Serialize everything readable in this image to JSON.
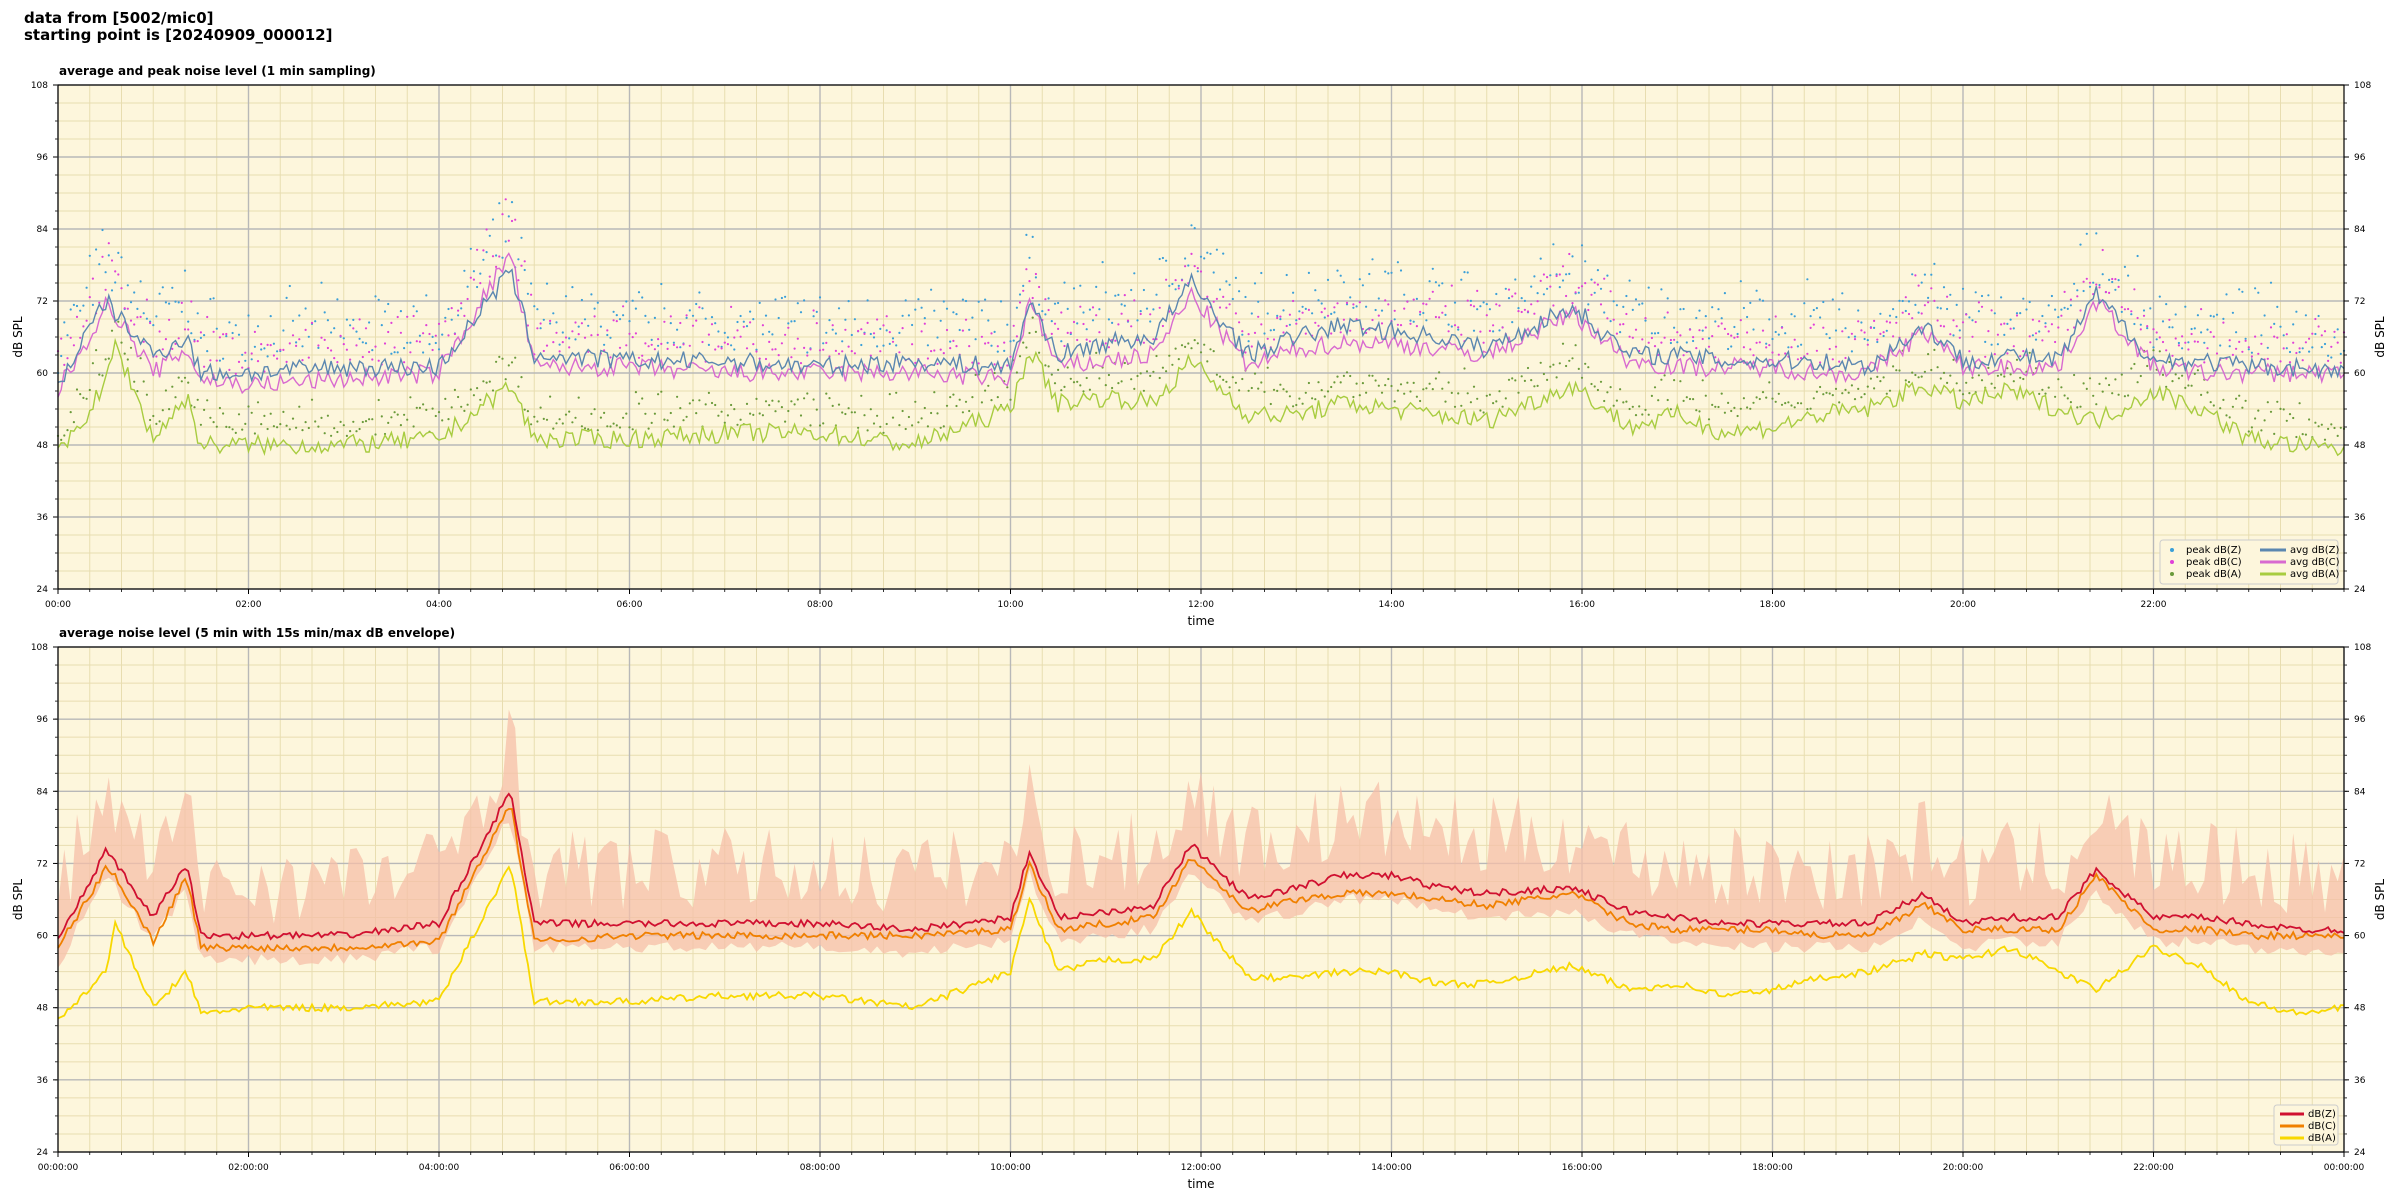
{
  "header": {
    "line1": "data from [5002/mic0]",
    "line2": "starting point is [20240909_000012]"
  },
  "colors": {
    "background": "#fdf6dc",
    "grid_major": "#b8b8b8",
    "grid_minor": "#e8ddb0",
    "peak_z": "#3a9fd8",
    "peak_c": "#e040d8",
    "peak_a": "#6a9a3a",
    "avg_z": "#5b87b0",
    "avg_c": "#d86ad0",
    "avg_a": "#a8cc40",
    "dbz": "#d01030",
    "dbc": "#f08000",
    "dba": "#f8d800",
    "envelope": "#f5bfa8"
  },
  "chart_data": [
    {
      "type": "line",
      "title": "average and peak noise level (1 min sampling)",
      "xlabel": "time",
      "ylabel": "dB SPL",
      "ylim": [
        24,
        108
      ],
      "xlim_hours": [
        0,
        24
      ],
      "yticks": [
        "24",
        "36",
        "48",
        "60",
        "72",
        "84",
        "96",
        "108"
      ],
      "xticks": [
        "00:00",
        "02:00",
        "04:00",
        "06:00",
        "08:00",
        "10:00",
        "12:00",
        "14:00",
        "16:00",
        "18:00",
        "20:00",
        "22:00"
      ],
      "grid": true,
      "legend_position": "lower-right",
      "legend": [
        "peak dB(Z)",
        "peak dB(C)",
        "peak dB(A)",
        "avg dB(Z)",
        "avg dB(C)",
        "avg dB(A)"
      ],
      "x_hours": [
        0.0,
        0.5,
        0.6,
        1.0,
        1.35,
        1.5,
        2.0,
        3.0,
        4.0,
        4.75,
        5.0,
        6.0,
        7.0,
        8.0,
        9.0,
        10.0,
        10.2,
        10.5,
        11.0,
        11.5,
        11.9,
        12.5,
        13.0,
        13.5,
        14.0,
        14.5,
        15.0,
        15.9,
        16.5,
        17.0,
        17.5,
        18.0,
        18.5,
        19.0,
        19.6,
        20.0,
        20.5,
        21.0,
        21.4,
        22.0,
        22.5,
        23.0,
        23.5,
        24.0
      ],
      "series": [
        {
          "name": "avg dB(Z)",
          "values": [
            58,
            72,
            70,
            63,
            66,
            60,
            60,
            61,
            61,
            77,
            63,
            62,
            62,
            61,
            62,
            61,
            72,
            63,
            65,
            66,
            75,
            63,
            66,
            68,
            67,
            66,
            64,
            71,
            63,
            63,
            62,
            62,
            62,
            61,
            68,
            62,
            63,
            62,
            73,
            62,
            62,
            61,
            61,
            60
          ]
        },
        {
          "name": "avg dB(C)",
          "values": [
            57,
            71,
            70,
            60,
            64,
            59,
            58,
            59,
            60,
            80,
            61,
            61,
            60,
            60,
            60,
            59,
            72,
            61,
            62,
            63,
            73,
            61,
            64,
            65,
            65,
            64,
            63,
            70,
            62,
            61,
            61,
            61,
            60,
            60,
            67,
            61,
            61,
            61,
            72,
            61,
            60,
            60,
            60,
            60
          ]
        },
        {
          "name": "avg dB(A)",
          "values": [
            46,
            58,
            65,
            49,
            56,
            48,
            48,
            48,
            49,
            58,
            49,
            49,
            50,
            50,
            48,
            54,
            64,
            55,
            56,
            55,
            62,
            53,
            53,
            55,
            54,
            53,
            52,
            58,
            51,
            53,
            50,
            51,
            53,
            54,
            58,
            55,
            57,
            54,
            52,
            57,
            54,
            49,
            48,
            47
          ]
        }
      ],
      "peak_series": [
        {
          "name": "peak dB(Z)",
          "offset_db": 5
        },
        {
          "name": "peak dB(C)",
          "offset_db": 4
        },
        {
          "name": "peak dB(A)",
          "offset_db": 3
        }
      ]
    },
    {
      "type": "line",
      "title": "average noise level (5 min with 15s min/max dB envelope)",
      "xlabel": "time",
      "ylabel": "dB SPL",
      "ylim": [
        24,
        108
      ],
      "xlim_hours": [
        0,
        24
      ],
      "yticks": [
        "24",
        "36",
        "48",
        "60",
        "72",
        "84",
        "96",
        "108"
      ],
      "xticks": [
        "00:00:00",
        "02:00:00",
        "04:00:00",
        "06:00:00",
        "08:00:00",
        "10:00:00",
        "12:00:00",
        "14:00:00",
        "16:00:00",
        "18:00:00",
        "20:00:00",
        "22:00:00",
        "00:00:00"
      ],
      "grid": true,
      "legend_position": "lower-right",
      "legend": [
        "dB(Z)",
        "dB(C)",
        "dB(A)"
      ],
      "x_hours": [
        0.0,
        0.5,
        0.6,
        1.0,
        1.35,
        1.5,
        2.0,
        3.0,
        4.0,
        4.75,
        5.0,
        6.0,
        7.0,
        8.0,
        9.0,
        10.0,
        10.2,
        10.5,
        11.0,
        11.5,
        11.9,
        12.5,
        13.0,
        13.5,
        14.0,
        14.5,
        15.0,
        15.9,
        16.5,
        17.0,
        17.5,
        18.0,
        18.5,
        19.0,
        19.6,
        20.0,
        20.5,
        21.0,
        21.4,
        22.0,
        22.5,
        23.0,
        23.5,
        24.0
      ],
      "series": [
        {
          "name": "dB(Z)",
          "values": [
            59,
            74,
            72,
            63,
            72,
            60,
            60,
            60,
            62,
            84,
            62,
            62,
            62,
            62,
            61,
            63,
            74,
            63,
            64,
            65,
            75,
            66,
            68,
            70,
            70,
            68,
            67,
            68,
            64,
            63,
            62,
            62,
            62,
            62,
            67,
            62,
            63,
            63,
            71,
            63,
            63,
            62,
            61,
            61
          ]
        },
        {
          "name": "dB(C)",
          "values": [
            58,
            71,
            70,
            59,
            70,
            58,
            58,
            58,
            59,
            82,
            59,
            60,
            60,
            60,
            60,
            61,
            72,
            61,
            62,
            63,
            73,
            64,
            66,
            67,
            67,
            66,
            65,
            67,
            62,
            61,
            61,
            61,
            60,
            60,
            65,
            61,
            61,
            61,
            70,
            61,
            61,
            60,
            60,
            60
          ]
        },
        {
          "name": "dB(A)",
          "values": [
            46,
            54,
            62,
            48,
            54,
            47,
            48,
            48,
            49,
            72,
            49,
            49,
            50,
            50,
            48,
            54,
            66,
            54,
            56,
            56,
            64,
            53,
            53,
            54,
            54,
            52,
            52,
            55,
            51,
            52,
            50,
            51,
            53,
            54,
            57,
            56,
            58,
            54,
            51,
            58,
            55,
            49,
            47,
            48
          ]
        }
      ],
      "envelope": {
        "name": "15s min/max",
        "offset_db": 14
      }
    }
  ]
}
